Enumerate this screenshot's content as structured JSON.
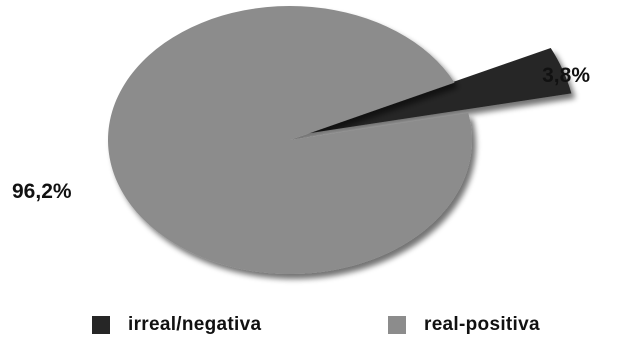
{
  "chart_data": {
    "type": "pie",
    "slices": [
      {
        "name": "irreal/negativa",
        "value": 3.8,
        "label": "3,8%",
        "color": "#262626"
      },
      {
        "name": "real-positiva",
        "value": 96.2,
        "label": "96,2%",
        "color": "#8c8c8c"
      }
    ],
    "legend_position": "bottom",
    "title": ""
  }
}
